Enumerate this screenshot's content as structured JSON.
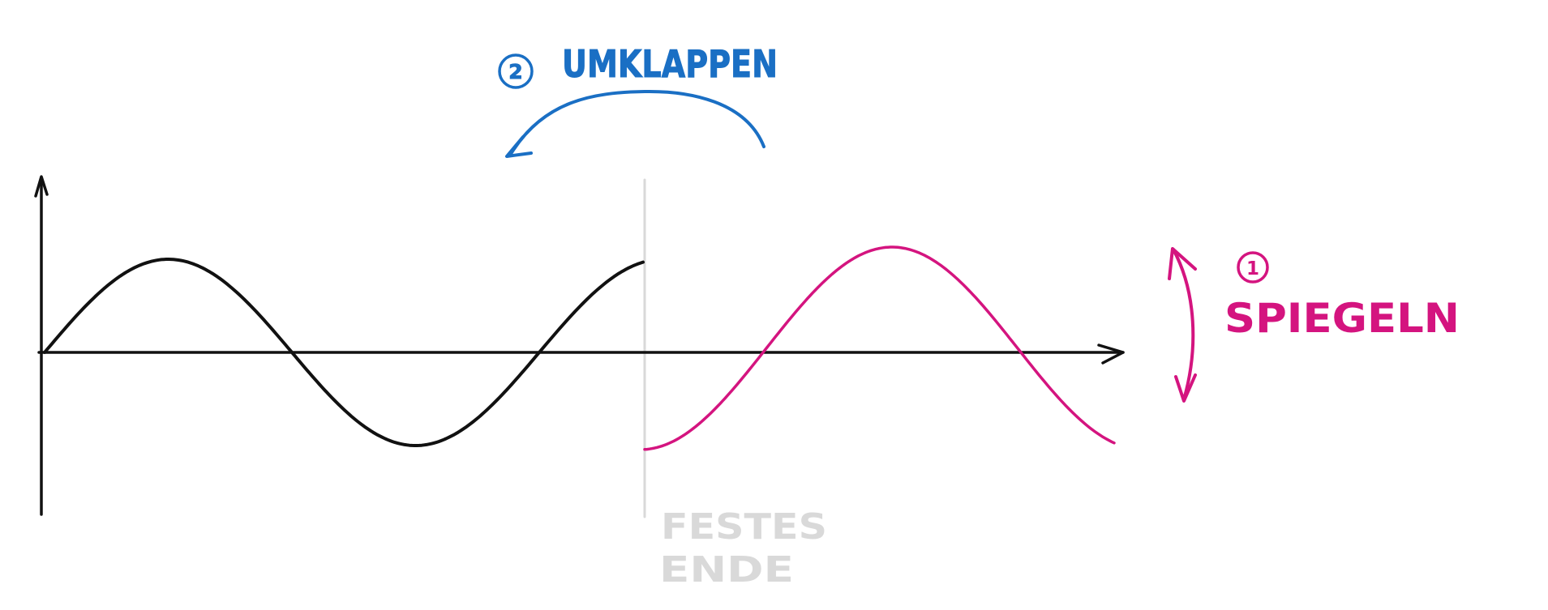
{
  "colors": {
    "ink": "#111111",
    "blue": "#1a6fc4",
    "magenta": "#d4147f",
    "grey": "#d9d9d9"
  },
  "labels": {
    "step_2_number": "2",
    "step_2_text": "UMKLAPPEN",
    "step_1_number": "1",
    "step_1_text": "SPIEGELN",
    "boundary_line1": "FESTES",
    "boundary_line2": "ENDE"
  }
}
